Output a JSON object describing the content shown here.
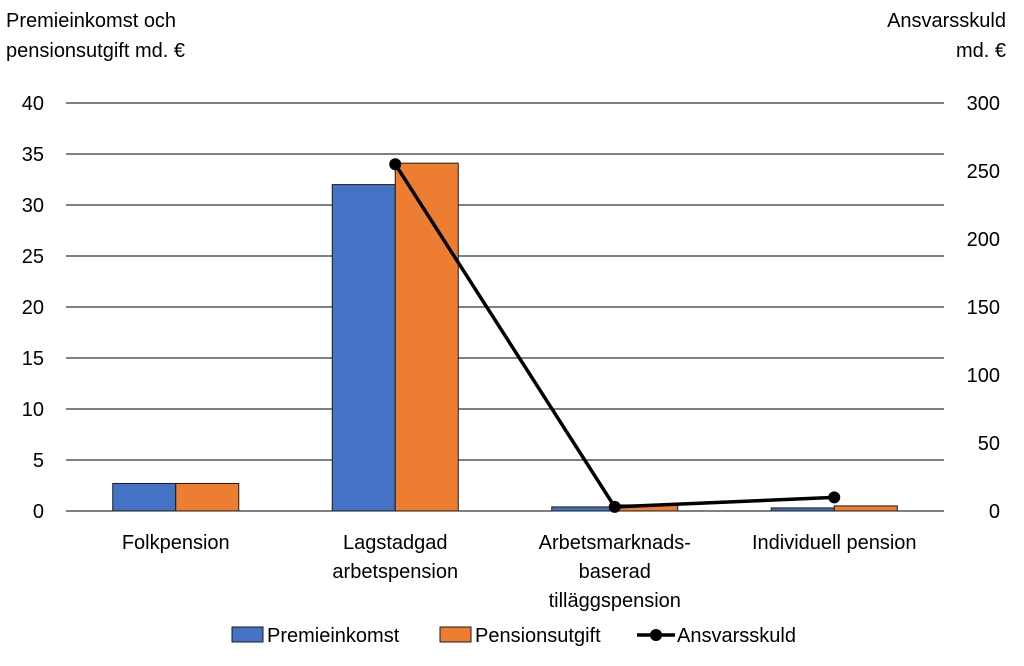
{
  "chart_data": {
    "type": "bar",
    "ylabel_left_lines": [
      "Premieinkomst och",
      "pensionsutgift md. €"
    ],
    "ylabel_right_lines": [
      "Ansvarsskuld",
      "md. €"
    ],
    "categories": [
      [
        "Folkpension"
      ],
      [
        "Lagstadgad",
        "arbetspension"
      ],
      [
        "Arbetsmarknads-",
        "baserad",
        "tilläggspension"
      ],
      [
        "Individuell pension"
      ]
    ],
    "left_axis": {
      "ylim": [
        0,
        40
      ],
      "ticks": [
        "0",
        "5",
        "10",
        "15",
        "20",
        "25",
        "30",
        "35",
        "40"
      ]
    },
    "right_axis": {
      "ylim": [
        0,
        300
      ],
      "ticks": [
        "0",
        "50",
        "100",
        "150",
        "200",
        "250",
        "300"
      ]
    },
    "grid": true,
    "legend_position": "bottom",
    "series": [
      {
        "name": "Premieinkomst",
        "type": "bar",
        "axis": "left",
        "color": "#4472C4",
        "values": [
          2.7,
          32.0,
          0.4,
          0.3
        ]
      },
      {
        "name": "Pensionsutgift",
        "type": "bar",
        "axis": "left",
        "color": "#ED7D31",
        "values": [
          2.7,
          34.1,
          0.6,
          0.5
        ]
      },
      {
        "name": "Ansvarsskuld",
        "type": "line",
        "axis": "right",
        "color": "#000000",
        "values": [
          null,
          255,
          3,
          10
        ]
      }
    ]
  }
}
